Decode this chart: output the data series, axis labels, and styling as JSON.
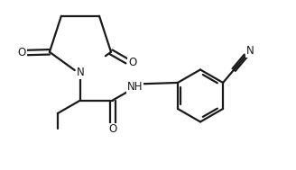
{
  "bg_color": "#ffffff",
  "line_color": "#1a1a1a",
  "line_width": 1.6,
  "font_size": 8.5,
  "figsize": [
    3.28,
    1.89
  ],
  "dpi": 100,
  "xlim": [
    0,
    9.5
  ],
  "ylim": [
    0,
    5.5
  ]
}
